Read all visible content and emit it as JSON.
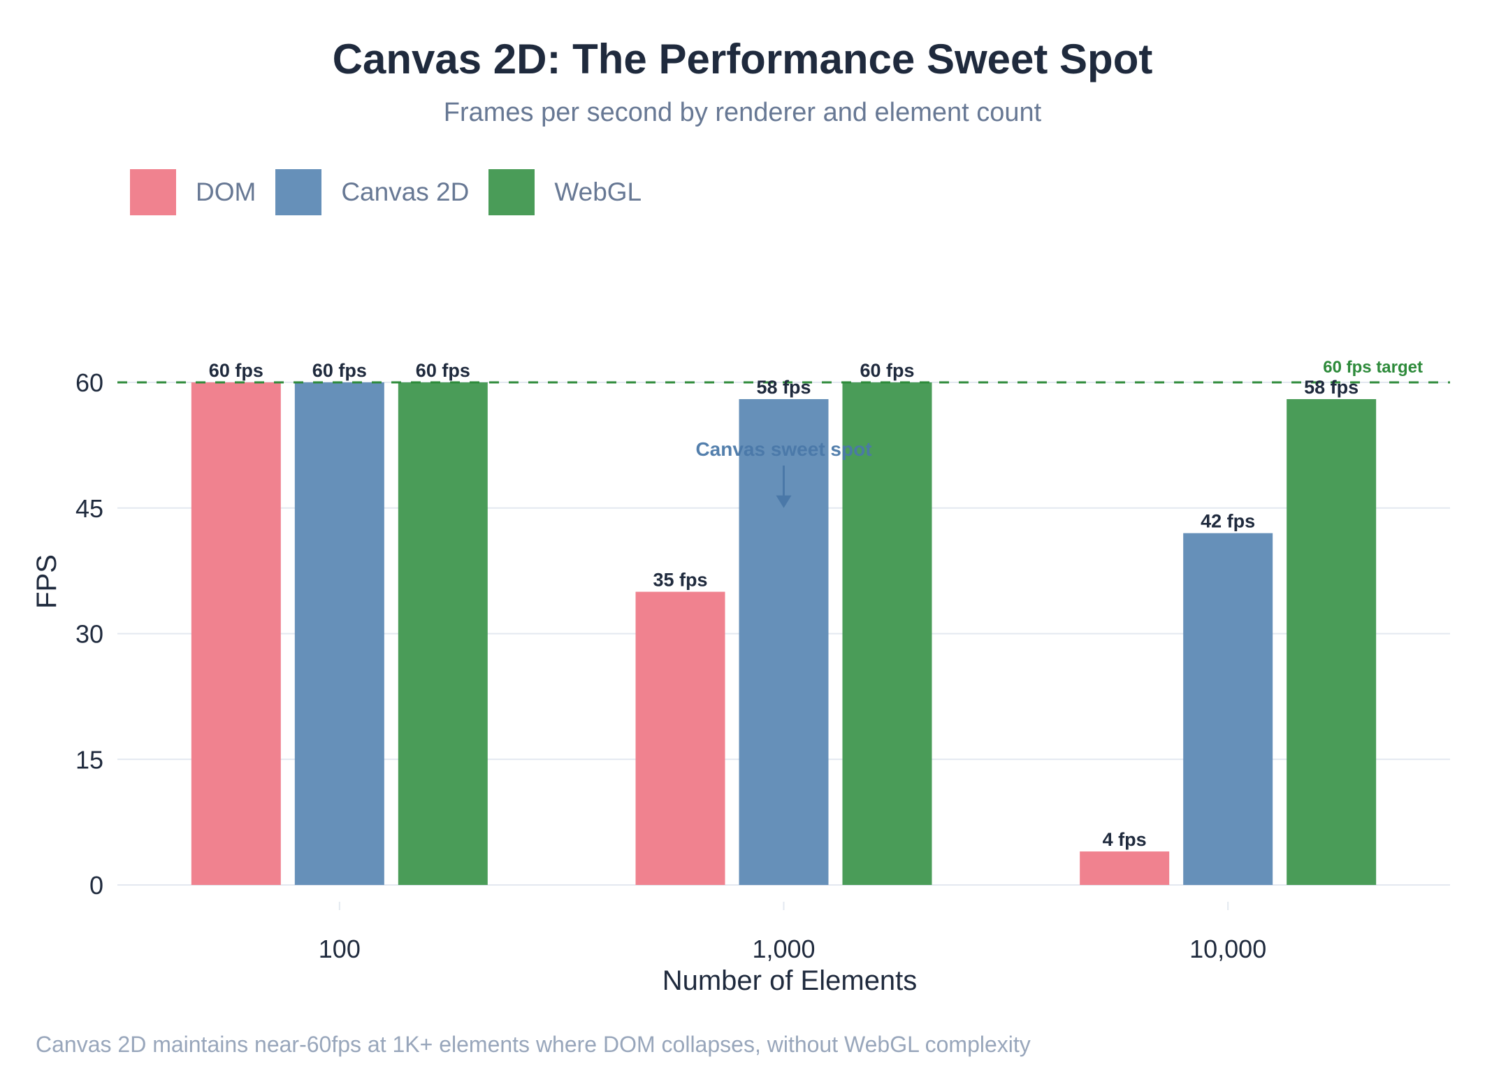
{
  "chart_data": {
    "type": "bar",
    "title": "Canvas 2D: The Performance Sweet Spot",
    "subtitle": "Frames per second by renderer and element count",
    "xlabel": "Number of Elements",
    "ylabel": "FPS",
    "categories": [
      "100",
      "1,000",
      "10,000"
    ],
    "series": [
      {
        "name": "DOM",
        "color": "#f0828f",
        "values": [
          60,
          35,
          4
        ],
        "labels": [
          "60 fps",
          "35 fps",
          "4 fps"
        ]
      },
      {
        "name": "Canvas 2D",
        "color": "#6690b9",
        "values": [
          60,
          58,
          42
        ],
        "labels": [
          "60 fps",
          "58 fps",
          "42 fps"
        ]
      },
      {
        "name": "WebGL",
        "color": "#4a9c58",
        "values": [
          60,
          60,
          58
        ],
        "labels": [
          "60 fps",
          "60 fps",
          "58 fps"
        ]
      }
    ],
    "ylim": [
      0,
      60
    ],
    "yticks": [
      0,
      15,
      30,
      45,
      60
    ],
    "ytick_labels": [
      "0",
      "15",
      "30",
      "45",
      "60"
    ],
    "grid": true,
    "legend_position": "top-left",
    "reference_line": {
      "value": 60,
      "label": "60 fps target",
      "color": "#2d8a3a",
      "style": "dashed"
    },
    "annotations": [
      {
        "text": "Canvas sweet spot",
        "category": "1,000",
        "points_to_value": 45,
        "color": "#4a78a8"
      }
    ],
    "footnote": "Canvas 2D maintains near-60fps at 1K+ elements where DOM collapses, without WebGL complexity"
  }
}
